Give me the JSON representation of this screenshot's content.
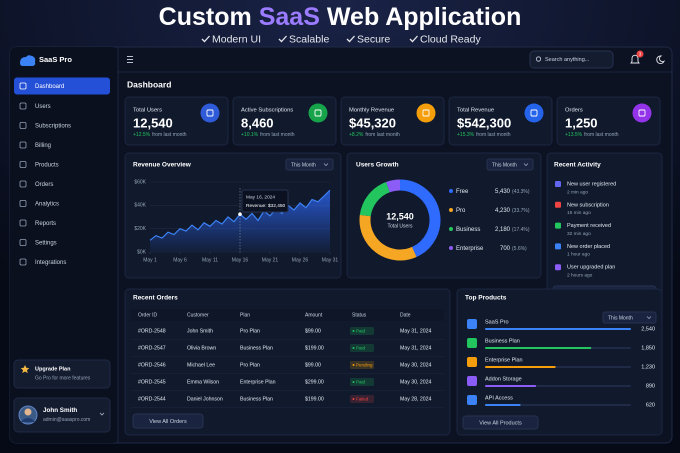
{
  "banner": {
    "title_parts": [
      "Custom",
      "SaaS",
      "Web Application"
    ],
    "features": [
      "Modern UI",
      "Scalable",
      "Secure",
      "Cloud Ready"
    ]
  },
  "sidebar": {
    "logo": "SaaS Pro",
    "nav": [
      "Dashboard",
      "Users",
      "Subscriptions",
      "Billing",
      "Products",
      "Orders",
      "Analytics",
      "Reports",
      "Settings",
      "Integrations"
    ],
    "upgrade": {
      "title": "Upgrade Plan",
      "text": "Go Pro for more features"
    },
    "user": {
      "name": "John Smith",
      "email": "admin@saaspro.com"
    }
  },
  "header": {
    "search": "Search anything...",
    "notifications": 3,
    "page_title": "Dashboard"
  },
  "stats": [
    {
      "label": "Total Users",
      "value": "12,540",
      "change": "+12.5%",
      "note": "from last month"
    },
    {
      "label": "Active Subscriptions",
      "value": "8,460",
      "change": "+10.1%",
      "note": "from last month"
    },
    {
      "label": "Monthly Revenue",
      "value": "$45,320",
      "change": "+8.2%",
      "note": "from last month"
    },
    {
      "label": "Total Revenue",
      "value": "$542,300",
      "change": "+15.3%",
      "note": "from last month"
    },
    {
      "label": "Orders",
      "value": "1,250",
      "change": "+13.5%",
      "note": "from last month"
    }
  ],
  "revenue_overview": {
    "title": "Revenue Overview",
    "period": "This Month",
    "color": "#3b82f6",
    "xlim": [
      1,
      31
    ],
    "xticks": [
      {
        "value": 1,
        "label": "May 1"
      },
      {
        "value": 6,
        "label": "May 6"
      },
      {
        "value": 11,
        "label": "May 11"
      },
      {
        "value": 16,
        "label": "May 16"
      },
      {
        "value": 21,
        "label": "May 21"
      },
      {
        "value": 26,
        "label": "May 26"
      },
      {
        "value": 31,
        "label": "May 31"
      }
    ],
    "ylim": [
      0,
      60000
    ],
    "yticks": [
      {
        "value": 0,
        "label": "$0K"
      },
      {
        "value": 20000,
        "label": "$20K"
      },
      {
        "value": 40000,
        "label": "$40K"
      },
      {
        "value": 60000,
        "label": "$60K"
      }
    ],
    "x": [
      1,
      2,
      3,
      4,
      5,
      6,
      7,
      8,
      9,
      10,
      11,
      12,
      13,
      14,
      15,
      16,
      17,
      18,
      19,
      20,
      21,
      22,
      23,
      24,
      25,
      26,
      27,
      28,
      29,
      30,
      31
    ],
    "values": [
      10000,
      14000,
      12000,
      17000,
      15000,
      20000,
      18000,
      23000,
      19000,
      25000,
      22000,
      27000,
      24000,
      30000,
      26000,
      32450,
      28000,
      33000,
      27000,
      35000,
      31000,
      37000,
      33000,
      40000,
      36000,
      42000,
      38000,
      45000,
      43000,
      48000,
      53000
    ],
    "tooltip": {
      "date": "May 16, 2024",
      "text": "Revenue: $32,450"
    }
  },
  "users_growth": {
    "title": "Users Growth",
    "period": "This Month",
    "total": "12,540",
    "total_label": "Total Users",
    "categories": [
      "Free",
      "Pro",
      "Business",
      "Enterprise"
    ],
    "values": [
      5430,
      4230,
      2180,
      700
    ],
    "value_labels": [
      "5,430",
      "4,230",
      "2,180",
      "700"
    ],
    "percents": [
      "(43.3%)",
      "(33.7%)",
      "(17.4%)",
      "(5.6%)"
    ],
    "colors": [
      "#2f6bff",
      "#f5a623",
      "#22c55e",
      "#8b5cf6"
    ]
  },
  "activity": {
    "title": "Recent Activity",
    "items": [
      {
        "text": "New user registered",
        "time": "2 min ago"
      },
      {
        "text": "New subscription",
        "time": "15 min ago"
      },
      {
        "text": "Payment received",
        "time": "32 min ago"
      },
      {
        "text": "New order placed",
        "time": "1 hour ago"
      },
      {
        "text": "User upgraded plan",
        "time": "2 hours ago"
      }
    ],
    "button": "View All Activity"
  },
  "orders": {
    "title": "Recent Orders",
    "columns": [
      "Order ID",
      "Customer",
      "Plan",
      "Amount",
      "Status",
      "Date"
    ],
    "rows": [
      [
        "#ORD-2548",
        "John Smith",
        "Pro Plan",
        "$99.00",
        "Paid",
        "May 31, 2024"
      ],
      [
        "#ORD-2547",
        "Olivia Brown",
        "Business Plan",
        "$199.00",
        "Paid",
        "May 31, 2024"
      ],
      [
        "#ORD-2546",
        "Michael Lee",
        "Pro Plan",
        "$99.00",
        "Pending",
        "May 30, 2024"
      ],
      [
        "#ORD-2545",
        "Emma Wilson",
        "Enterprise Plan",
        "$299.00",
        "Paid",
        "May 30, 2024"
      ],
      [
        "#ORD-2544",
        "Daniel Johnson",
        "Business Plan",
        "$199.00",
        "Failed",
        "May 28, 2024"
      ]
    ],
    "status_colors": [
      "#22c55e",
      "#22c55e",
      "#f59e0b",
      "#22c55e",
      "#ef4444"
    ],
    "button": "View All Orders"
  },
  "top_products": {
    "title": "Top Products",
    "period": "This Month",
    "categories": [
      "SaaS Pro",
      "Business Plan",
      "Enterprise Plan",
      "Addon Storage",
      "API Access"
    ],
    "values": [
      2540,
      1850,
      1230,
      890,
      620
    ],
    "value_labels": [
      "2,540",
      "1,850",
      "1,230",
      "890",
      "620"
    ],
    "colors": [
      "#3b82f6",
      "#22c55e",
      "#f59e0b",
      "#8b5cf6",
      "#3b82f6"
    ],
    "button": "View All Products"
  }
}
